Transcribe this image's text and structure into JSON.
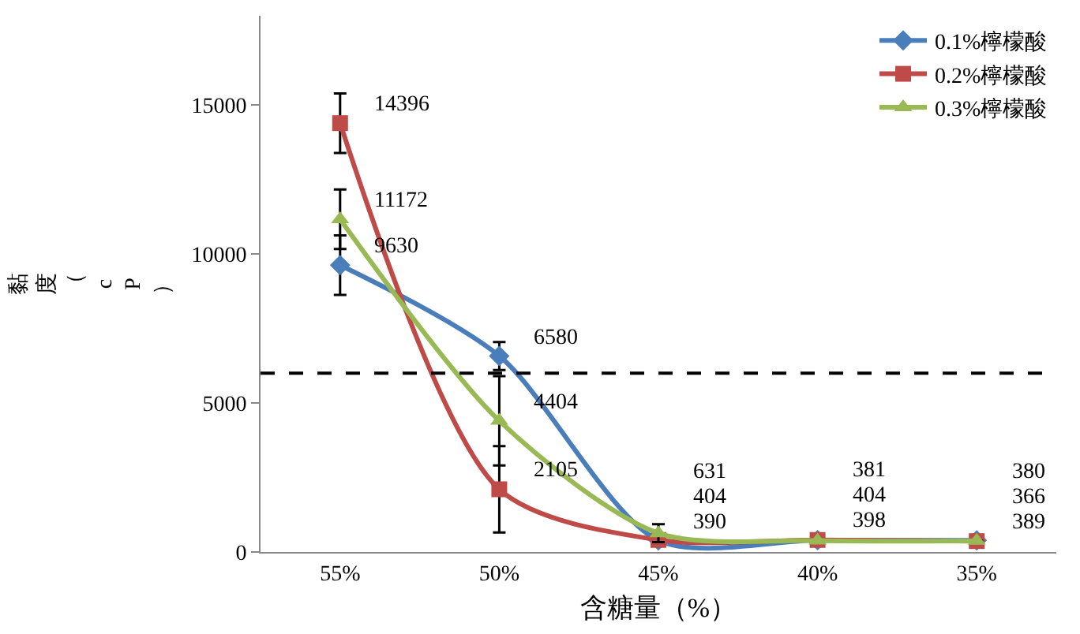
{
  "chart_data": {
    "type": "line",
    "xlabel": "含糖量（%）",
    "ylabel": "黏度（cP）",
    "categories": [
      "55%",
      "50%",
      "45%",
      "40%",
      "35%"
    ],
    "series": [
      {
        "name": "0.1%檸檬酸",
        "color": "#4a7ebb",
        "marker": "diamond",
        "values": [
          9630,
          6580,
          390,
          398,
          389
        ],
        "errors": [
          1000,
          470,
          null,
          null,
          null
        ]
      },
      {
        "name": "0.2%檸檬酸",
        "color": "#be4b48",
        "marker": "square",
        "values": [
          14396,
          2105,
          404,
          404,
          366
        ],
        "errors": [
          1000,
          1450,
          null,
          null,
          null
        ]
      },
      {
        "name": "0.3%檸檬酸",
        "color": "#98b954",
        "marker": "triangle",
        "values": [
          11172,
          4404,
          631,
          381,
          380
        ],
        "errors": [
          1000,
          1500,
          300,
          null,
          null
        ]
      }
    ],
    "ylim": [
      0,
      18000
    ],
    "yticks": [
      0,
      5000,
      10000,
      15000
    ],
    "ref_lines": [
      {
        "axis": "y",
        "value": 6000,
        "color": "#000000",
        "line_style": "dashed"
      }
    ],
    "data_labels": true,
    "legend": "top right"
  }
}
